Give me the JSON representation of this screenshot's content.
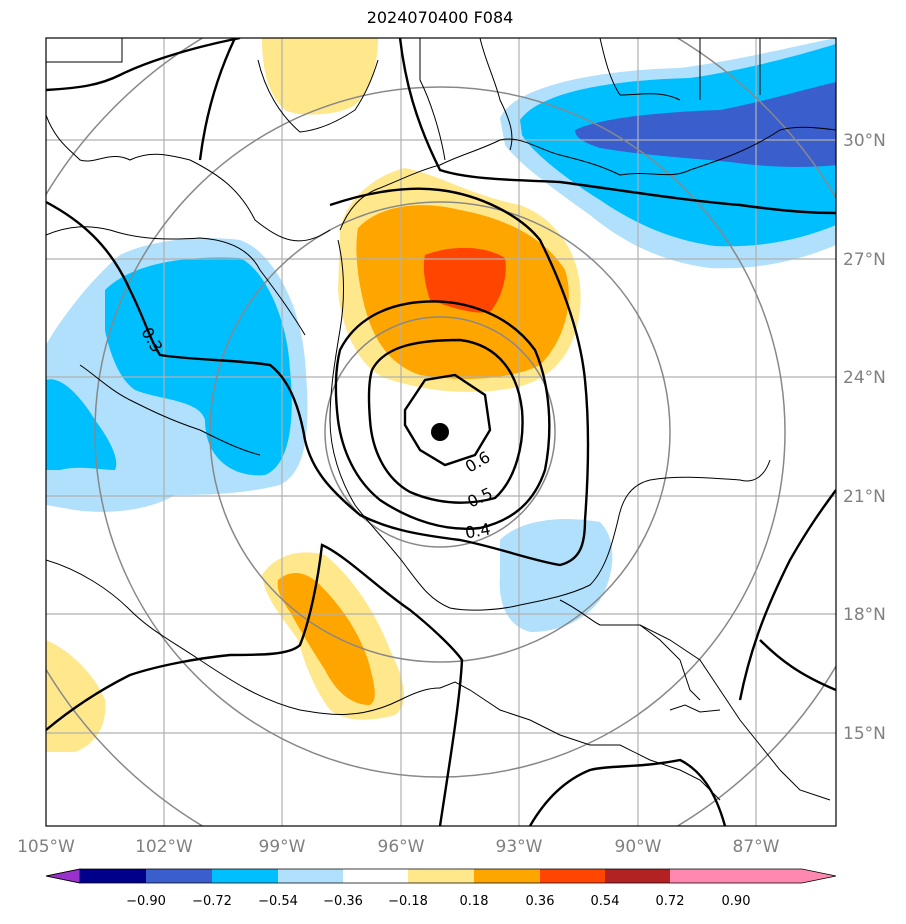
{
  "title": "2024070400 F084",
  "longitude_ticks": [
    "105°W",
    "102°W",
    "99°W",
    "96°W",
    "93°W",
    "90°W",
    "87°W"
  ],
  "latitude_ticks": [
    "30°N",
    "27°N",
    "24°N",
    "21°N",
    "18°N",
    "15°N"
  ],
  "contour_labels": [
    "0.3",
    "0.4",
    "0.5",
    "0.6"
  ],
  "colorbar": {
    "ticks": [
      "−0.90",
      "−0.72",
      "−0.54",
      "−0.36",
      "−0.18",
      "0.18",
      "0.36",
      "0.54",
      "0.72",
      "0.90"
    ],
    "colors": [
      "#9932cc",
      "#00008b",
      "#3a5fcd",
      "#00bfff",
      "#b0e0fb",
      "#ffffff",
      "#ffe88c",
      "#ffa500",
      "#ff4500",
      "#b22222",
      "#ff88b0"
    ]
  },
  "storm_center": {
    "lon": -95.0,
    "lat": 22.6
  }
}
